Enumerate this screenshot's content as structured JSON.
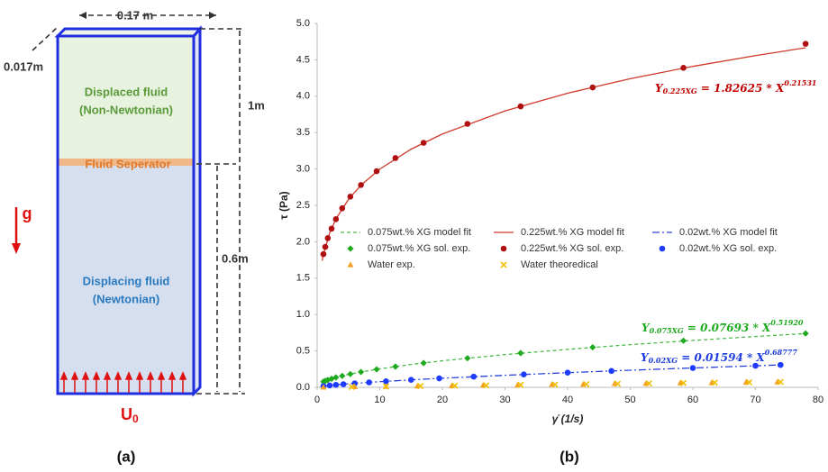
{
  "panel_labels": [
    "(a)",
    "(b)"
  ],
  "diagram": {
    "width_label": "0.17 m",
    "depth_label": "0.017m",
    "height_label": "1m",
    "lower_height_label": "0.6m",
    "upper_fluid": [
      "Displaced fluid",
      "(Non-Newtonian)"
    ],
    "separator": "Fluid Seperator",
    "gravity": "g",
    "lower_fluid": [
      "Displacing fluid",
      "(Newtonian)"
    ],
    "inlet": {
      "base": "U",
      "sub": "0"
    }
  },
  "chart_data": {
    "type": "scatter",
    "x_label": "γ̇  (1/s)",
    "y_label": "τ (Pa)",
    "xlim": [
      0,
      80
    ],
    "ylim": [
      0,
      5
    ],
    "xticks": [
      0,
      10,
      20,
      30,
      40,
      50,
      60,
      70,
      80
    ],
    "yticks": [
      {
        "value": 0,
        "label": "0.0"
      },
      {
        "value": 0.5,
        "label": "0.5"
      },
      {
        "value": 1,
        "label": "1.0"
      },
      {
        "value": 1.5,
        "label": "1.5"
      },
      {
        "value": 2,
        "label": "2.0"
      },
      {
        "value": 2.5,
        "label": "2.5"
      },
      {
        "value": 3,
        "label": "3.0"
      },
      {
        "value": 3.5,
        "label": "3.5"
      },
      {
        "value": 4,
        "label": "4.0"
      },
      {
        "value": 4.5,
        "label": "4.5"
      },
      {
        "value": 5,
        "label": "5.0"
      }
    ],
    "grid": false,
    "series": [
      {
        "name": "0.075wt.% XG model fit",
        "mode": "line",
        "dash": "dashed",
        "color": "#4cbb4c",
        "x": [
          0.8,
          1,
          2,
          3,
          5,
          7,
          10,
          15,
          20,
          30,
          40,
          50,
          60,
          70,
          78
        ],
        "values": [
          0.0685,
          0.0769,
          0.1103,
          0.1361,
          0.1774,
          0.2113,
          0.2543,
          0.3139,
          0.3644,
          0.4498,
          0.5222,
          0.5864,
          0.6447,
          0.6984,
          0.7388
        ]
      },
      {
        "name": "0.225wt.% XG model fit",
        "mode": "line",
        "dash": "solid",
        "color": "#d03a2a",
        "x": [
          0.8,
          1,
          2,
          3,
          5,
          7,
          10,
          15,
          20,
          30,
          40,
          50,
          60,
          70,
          78
        ],
        "values": [
          1.741,
          1.826,
          2.12,
          2.313,
          2.582,
          2.777,
          2.998,
          3.272,
          3.481,
          3.798,
          4.041,
          4.24,
          4.41,
          4.558,
          4.666
        ]
      },
      {
        "name": "0.02wt.% XG model fit",
        "mode": "line",
        "dash": "dashdot",
        "color": "#2a45d8",
        "x": [
          0.8,
          1,
          2,
          3,
          5,
          7,
          10,
          15,
          20,
          30,
          40,
          50,
          60,
          70,
          74
        ],
        "values": [
          0.0137,
          0.0159,
          0.0257,
          0.0339,
          0.0482,
          0.0608,
          0.0777,
          0.1027,
          0.1251,
          0.1654,
          0.2015,
          0.235,
          0.2663,
          0.2962,
          0.3077
        ]
      },
      {
        "name": "0.075wt.% XG sol. exp.",
        "mode": "marker",
        "marker": "diamond",
        "color": "#1faa1f",
        "x": [
          1,
          1.3,
          1.7,
          2.3,
          3,
          4,
          5.3,
          7,
          9.5,
          12.5,
          17,
          24,
          32.5,
          44,
          58.5,
          78
        ],
        "values": [
          0.077,
          0.088,
          0.101,
          0.118,
          0.136,
          0.157,
          0.182,
          0.211,
          0.247,
          0.285,
          0.334,
          0.4,
          0.47,
          0.55,
          0.64,
          0.74
        ]
      },
      {
        "name": "0.225wt.% XG sol. exp.",
        "mode": "marker",
        "marker": "circle",
        "color": "#b01010",
        "x": [
          1,
          1.3,
          1.7,
          2.3,
          3,
          4,
          5.3,
          7,
          9.5,
          12.5,
          17,
          24,
          32.5,
          44,
          58.5,
          78
        ],
        "values": [
          1.83,
          1.93,
          2.05,
          2.18,
          2.31,
          2.46,
          2.62,
          2.78,
          2.97,
          3.15,
          3.36,
          3.62,
          3.86,
          4.12,
          4.39,
          4.72
        ]
      },
      {
        "name": "0.02wt.% XG sol. exp.",
        "mode": "marker",
        "marker": "circle",
        "color": "#1e3cff",
        "x": [
          1,
          2,
          3,
          4.2,
          6,
          8.3,
          11,
          15,
          19.5,
          25,
          33,
          40,
          47,
          60,
          70,
          74
        ],
        "values": [
          0.016,
          0.026,
          0.034,
          0.043,
          0.054,
          0.068,
          0.083,
          0.103,
          0.123,
          0.147,
          0.177,
          0.202,
          0.225,
          0.266,
          0.297,
          0.308
        ]
      },
      {
        "name": "Water exp.",
        "mode": "marker",
        "marker": "triangle",
        "color": "#f5a020",
        "x": [
          1,
          6,
          11,
          16,
          21.5,
          26.5,
          32,
          37.5,
          42.5,
          47.5,
          52.5,
          58,
          63,
          68.5,
          73.5
        ],
        "values": [
          0.001,
          0.007,
          0.01,
          0.016,
          0.02,
          0.028,
          0.03,
          0.04,
          0.042,
          0.05,
          0.052,
          0.06,
          0.062,
          0.07,
          0.072
        ]
      },
      {
        "name": "Water theoredical",
        "mode": "marker",
        "marker": "x",
        "color": "#f0c000",
        "x": [
          5.5,
          11,
          16.5,
          22,
          27,
          32.5,
          38,
          43,
          48,
          53,
          58.5,
          63.5,
          69,
          74
        ],
        "values": [
          0.006,
          0.011,
          0.017,
          0.022,
          0.027,
          0.033,
          0.038,
          0.043,
          0.048,
          0.053,
          0.059,
          0.064,
          0.069,
          0.074
        ]
      }
    ],
    "annotations": [
      {
        "base": "Y",
        "sub": "0.225XG",
        "mid": " = 1.82625 * X",
        "sup": "0.21531",
        "color": "#c00000"
      },
      {
        "base": "Y",
        "sub": "0.075XG",
        "mid": " = 0.07693 * X",
        "sup": "0.51920",
        "color": "#1faa1f"
      },
      {
        "base": "Y",
        "sub": "0.02XG",
        "mid": " = 0.01594 * X",
        "sup": "0.68777",
        "color": "#1e3cdd"
      }
    ]
  }
}
